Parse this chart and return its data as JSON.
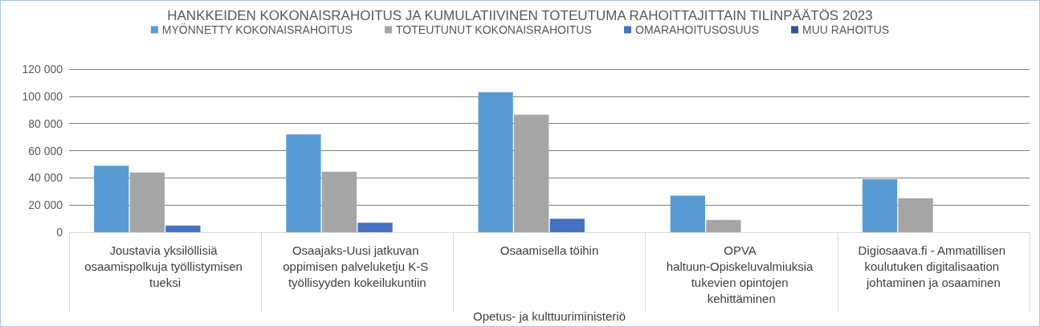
{
  "chart_data": {
    "type": "bar",
    "title": "HANKKEIDEN KOKONAISRAHOITUS JA KUMULATIIVINEN TOTEUTUMA RAHOITTAJITTAIN TILINPÄÄTÖS 2023",
    "xlabel": "Opetus- ja kulttuuriministeriö",
    "categories": [
      "Joustavia yksilöllisiä osaamispolkuja työllistymisen tueksi",
      "Osaajaks-Uusi jatkuvan oppimisen palveluketju K-S työllisyyden kokeilukuntiin",
      "Osaamisella töihin",
      "OPVA haltuun-Opiskeluvalmiuksia tukevien opintojen kehittäminen",
      "Digiosaava.fi - Ammatillisen koulutuken digitalisaation johtaminen ja osaaminen"
    ],
    "series": [
      {
        "name": "MYÖNNETTY KOKONAISRAHOITUS",
        "color": "#5b9bd5",
        "values": [
          49000,
          72000,
          103000,
          27000,
          39000
        ]
      },
      {
        "name": "TOTEUTUNUT KOKONAISRAHOITUS",
        "color": "#a5a5a5",
        "values": [
          44000,
          44500,
          86500,
          9000,
          25000
        ]
      },
      {
        "name": "OMARAHOITUSOSUUS",
        "color": "#4472c4",
        "values": [
          5000,
          7000,
          10000,
          0,
          0
        ]
      },
      {
        "name": "MUU RAHOITUS",
        "color": "#2f5597",
        "values": [
          0,
          0,
          0,
          0,
          0
        ]
      }
    ],
    "ylim": [
      0,
      120000
    ],
    "yticks": [
      0,
      20000,
      40000,
      60000,
      80000,
      100000,
      120000
    ],
    "grid": "y",
    "legend": "top"
  }
}
